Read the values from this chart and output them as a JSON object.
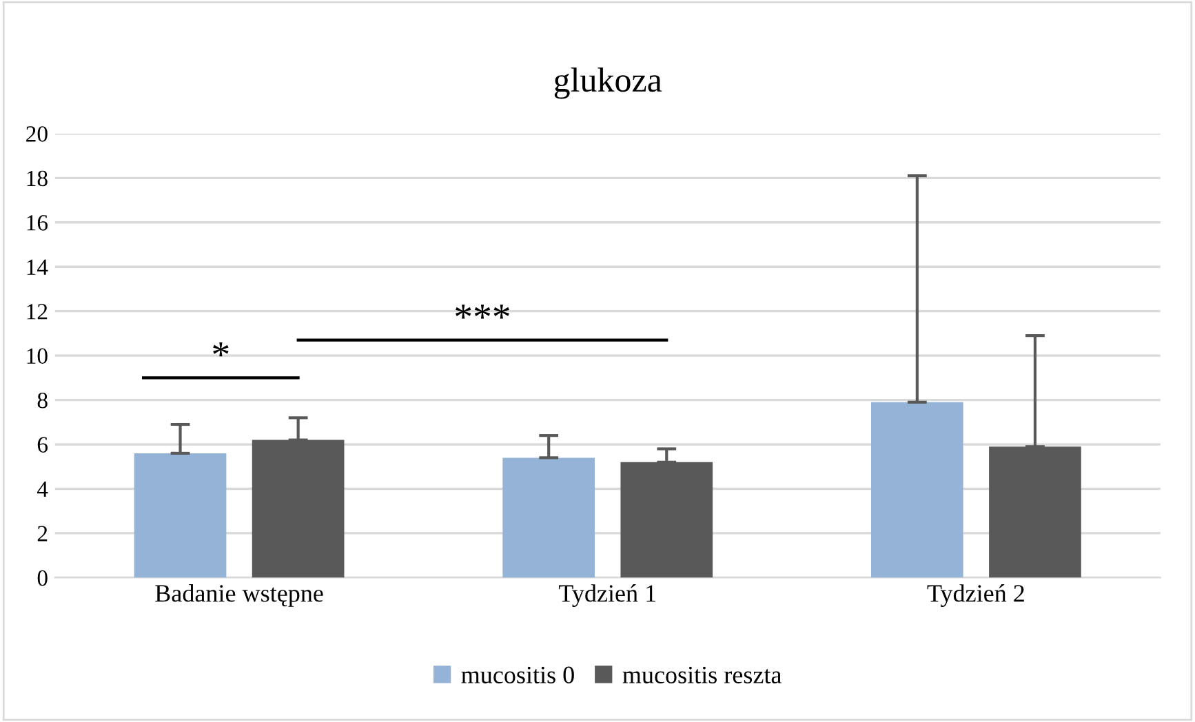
{
  "chart_data": {
    "type": "bar",
    "title": "glukoza",
    "categories": [
      "Badanie wstępne",
      "Tydzień 1",
      "Tydzień 2"
    ],
    "series": [
      {
        "name": "mucositis 0",
        "color": "#95b3d7",
        "values": [
          5.6,
          5.4,
          7.9
        ],
        "errors": [
          [
            5.6,
            6.9
          ],
          [
            5.4,
            6.4
          ],
          [
            7.9,
            18.1
          ]
        ]
      },
      {
        "name": "mucositis reszta",
        "color": "#595959",
        "values": [
          6.2,
          5.2,
          5.9
        ],
        "errors": [
          [
            6.2,
            7.2
          ],
          [
            5.2,
            5.8
          ],
          [
            5.9,
            10.9
          ]
        ]
      }
    ],
    "ylim": [
      0,
      20
    ],
    "yticks": [
      0,
      2,
      4,
      6,
      8,
      10,
      12,
      14,
      16,
      18,
      20
    ],
    "grid": "y",
    "legend": "bottom",
    "annotations": [
      "*",
      "***"
    ]
  }
}
